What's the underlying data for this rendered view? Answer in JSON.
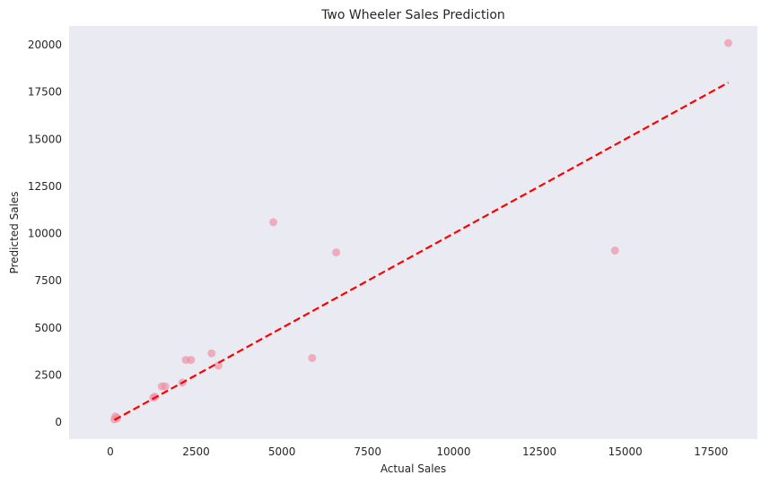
{
  "chart_data": {
    "type": "scatter",
    "title": "Two Wheeler Sales Prediction",
    "xlabel": "Actual Sales",
    "ylabel": "Predicted Sales",
    "xlim": [
      -1200,
      18850
    ],
    "ylim": [
      -900,
      21000
    ],
    "xticks": [
      0,
      2500,
      5000,
      7500,
      10000,
      12500,
      15000,
      17500
    ],
    "yticks": [
      0,
      2500,
      5000,
      7500,
      10000,
      12500,
      15000,
      17500,
      20000
    ],
    "grid": false,
    "background": "#eaeaf2",
    "point_color": "#f08ca0",
    "reference_line_color": "#ff0000",
    "points": [
      {
        "x": 120,
        "y": 150
      },
      {
        "x": 150,
        "y": 300
      },
      {
        "x": 200,
        "y": 220
      },
      {
        "x": 1250,
        "y": 1300
      },
      {
        "x": 1300,
        "y": 1350
      },
      {
        "x": 1500,
        "y": 1900
      },
      {
        "x": 1600,
        "y": 1900
      },
      {
        "x": 2100,
        "y": 2100
      },
      {
        "x": 2200,
        "y": 3300
      },
      {
        "x": 2350,
        "y": 3300
      },
      {
        "x": 2950,
        "y": 3650
      },
      {
        "x": 3150,
        "y": 3000
      },
      {
        "x": 4750,
        "y": 10600
      },
      {
        "x": 5880,
        "y": 3400
      },
      {
        "x": 6580,
        "y": 9000
      },
      {
        "x": 14700,
        "y": 9100
      },
      {
        "x": 18000,
        "y": 20100
      }
    ],
    "reference_line": {
      "x": [
        120,
        18000
      ],
      "y": [
        120,
        18000
      ],
      "style": "dashed"
    }
  }
}
